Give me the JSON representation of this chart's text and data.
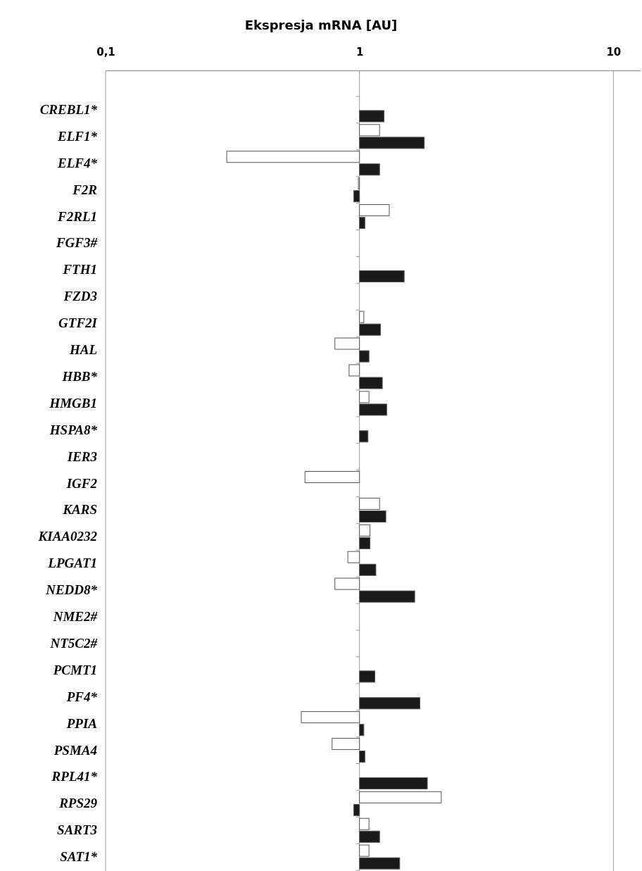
{
  "chart_data": {
    "type": "bar",
    "orientation": "horizontal",
    "log": "x",
    "title": "Ekspresja mRNA [AU]",
    "categories": [
      "CREBL1*",
      "ELF1*",
      "ELF4*",
      "F2R",
      "F2RL1",
      "FGF3#",
      "FTH1",
      "FZD3",
      "GTF2I",
      "HAL",
      "HBB*",
      "HMGB1",
      "HSPA8*",
      "IER3",
      "IGF2",
      "KARS",
      "KIAA0232",
      "LPGAT1",
      "NEDD8*",
      "NME2#",
      "NT5C2#",
      "PCMT1",
      "PF4*",
      "PPIA",
      "PSMA4",
      "RPL41*",
      "RPS29",
      "SART3",
      "SAT1*"
    ],
    "series": [
      {
        "color": "#ffffff",
        "base": [
          null,
          1,
          1,
          1,
          1,
          null,
          null,
          null,
          1,
          1,
          1,
          1,
          null,
          null,
          1,
          1,
          1,
          1,
          1,
          null,
          null,
          null,
          null,
          1,
          1,
          null,
          1,
          1,
          1
        ],
        "values": [
          null,
          0.2,
          -0.7,
          -0.01,
          0.31,
          null,
          null,
          null,
          0.04,
          -0.2,
          -0.09,
          0.09,
          null,
          null,
          -0.39,
          0.2,
          0.1,
          -0.1,
          -0.2,
          null,
          null,
          null,
          null,
          -0.41,
          -0.22,
          null,
          1.1,
          0.09,
          0.09
        ]
      },
      {
        "color": "#1a1a1a",
        "base": [
          1,
          1,
          1,
          1,
          1,
          null,
          1,
          null,
          1,
          1,
          1,
          1,
          1,
          null,
          null,
          1,
          1,
          1,
          1,
          null,
          null,
          1,
          1,
          1,
          1,
          1,
          1,
          1,
          1
        ],
        "values": [
          0.25,
          0.8,
          0.2,
          -0.05,
          0.05,
          null,
          0.5,
          null,
          0.21,
          0.09,
          0.23,
          0.28,
          0.08,
          null,
          null,
          0.27,
          0.1,
          0.16,
          0.65,
          null,
          null,
          0.15,
          0.73,
          0.04,
          0.05,
          0.85,
          -0.05,
          0.2,
          0.44
        ]
      }
    ],
    "xlim": [
      0.1,
      12.8
    ],
    "xticks": [
      {
        "value": 0.1,
        "label": "0,1"
      },
      1,
      10
    ],
    "grid": "x"
  }
}
